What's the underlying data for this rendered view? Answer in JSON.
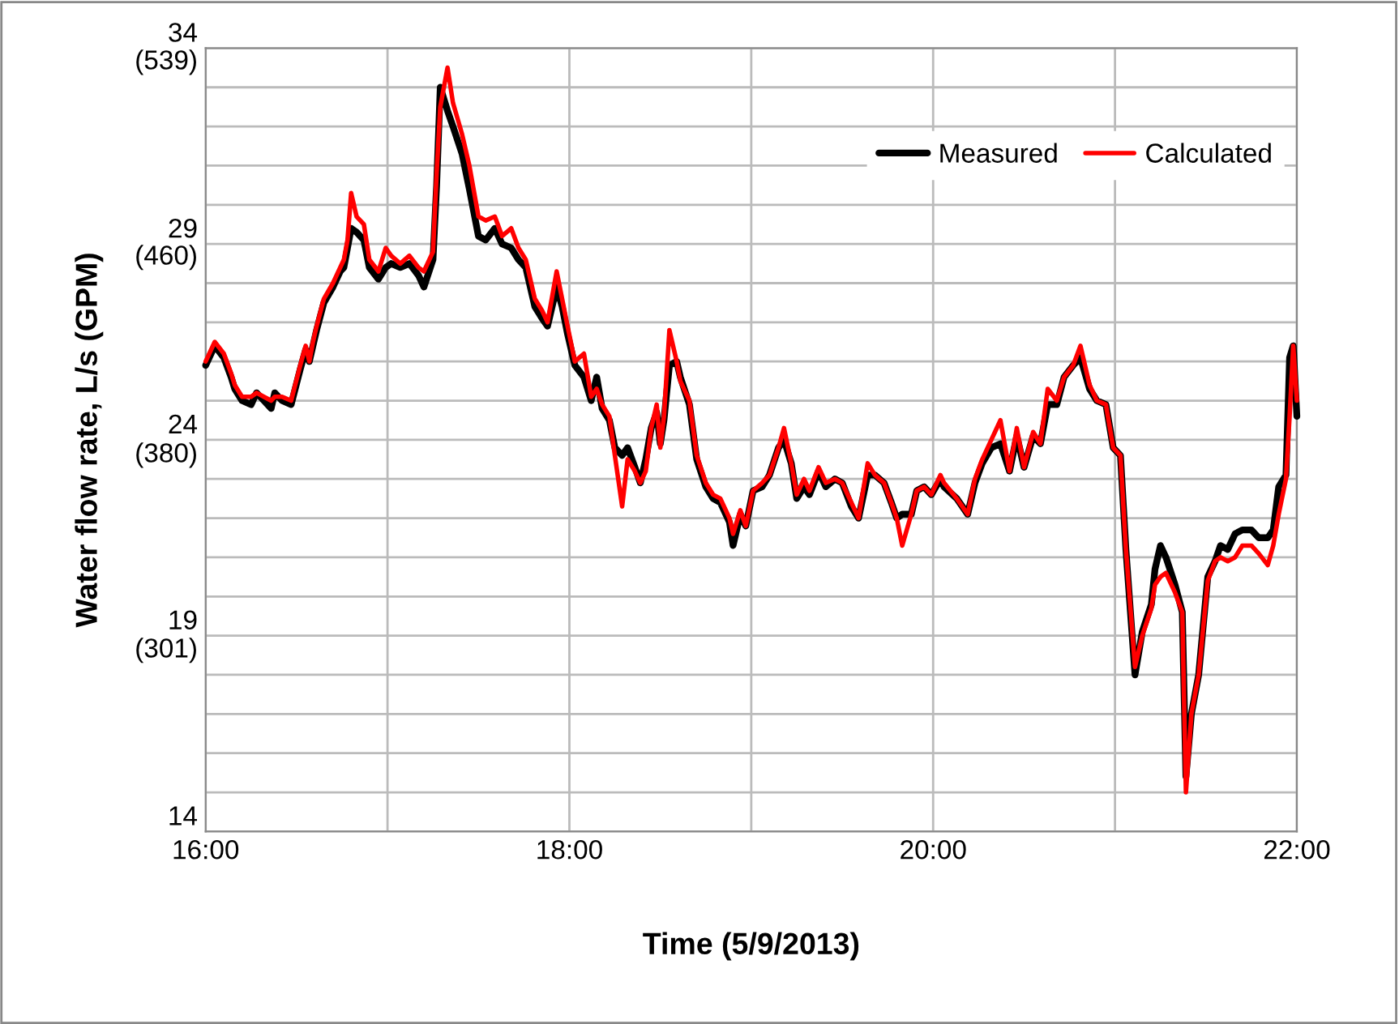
{
  "chart_data": {
    "type": "line",
    "xlabel": "Time (5/9/2013)",
    "y2label": "Water flow rate, L/s (GPM)",
    "x": [
      16.0,
      16.05,
      16.1,
      16.14,
      16.16,
      16.2,
      16.25,
      16.28,
      16.32,
      16.36,
      16.38,
      16.42,
      16.47,
      16.52,
      16.55,
      16.57,
      16.59,
      16.61,
      16.65,
      16.7,
      16.74,
      16.76,
      16.78,
      16.8,
      16.83,
      16.87,
      16.9,
      16.95,
      16.99,
      17.02,
      17.07,
      17.12,
      17.17,
      17.2,
      17.25,
      17.27,
      17.29,
      17.33,
      17.36,
      17.41,
      17.45,
      17.5,
      17.54,
      17.59,
      17.63,
      17.68,
      17.72,
      17.76,
      17.81,
      17.85,
      17.88,
      17.93,
      17.96,
      17.99,
      18.03,
      18.08,
      18.12,
      18.15,
      18.18,
      18.22,
      18.25,
      18.29,
      18.32,
      18.36,
      18.39,
      18.42,
      18.45,
      18.48,
      18.5,
      18.52,
      18.55,
      18.59,
      18.61,
      18.66,
      18.7,
      18.75,
      18.79,
      18.83,
      18.88,
      18.9,
      18.94,
      18.97,
      19.01,
      19.06,
      19.1,
      19.15,
      19.18,
      19.22,
      19.25,
      19.29,
      19.32,
      19.37,
      19.41,
      19.46,
      19.5,
      19.55,
      19.59,
      19.64,
      19.68,
      19.73,
      19.77,
      19.8,
      19.83,
      19.88,
      19.91,
      19.95,
      19.99,
      20.04,
      20.06,
      20.13,
      20.19,
      20.23,
      20.27,
      20.32,
      20.37,
      20.42,
      20.46,
      20.5,
      20.55,
      20.59,
      20.63,
      20.68,
      20.72,
      20.77,
      20.81,
      20.86,
      20.9,
      20.95,
      20.99,
      21.03,
      21.06,
      21.11,
      21.15,
      21.2,
      21.22,
      21.25,
      21.28,
      21.33,
      21.37,
      21.39,
      21.42,
      21.46,
      21.51,
      21.55,
      21.58,
      21.62,
      21.66,
      21.7,
      21.75,
      21.79,
      21.84,
      21.87,
      21.9,
      21.94,
      21.96,
      21.98,
      22.0
    ],
    "series": [
      {
        "name": "Measured",
        "color": "#000000",
        "values": [
          25.9,
          26.4,
          26.1,
          25.6,
          25.3,
          25.0,
          24.9,
          25.2,
          25.0,
          24.8,
          25.2,
          25.0,
          24.9,
          25.8,
          26.3,
          26.0,
          26.4,
          26.8,
          27.5,
          27.9,
          28.3,
          28.4,
          28.9,
          29.4,
          29.3,
          29.1,
          28.4,
          28.1,
          28.4,
          28.5,
          28.4,
          28.5,
          28.2,
          27.9,
          28.6,
          30.5,
          33.0,
          32.4,
          32.0,
          31.3,
          30.4,
          29.2,
          29.1,
          29.4,
          29.0,
          28.9,
          28.6,
          28.4,
          27.4,
          27.1,
          26.9,
          27.9,
          27.4,
          26.7,
          25.9,
          25.6,
          25.0,
          25.6,
          24.8,
          24.5,
          23.8,
          23.6,
          23.8,
          23.3,
          22.9,
          23.5,
          24.3,
          24.7,
          23.9,
          24.5,
          25.9,
          26.0,
          25.6,
          24.9,
          23.5,
          22.8,
          22.5,
          22.4,
          21.9,
          21.3,
          22.1,
          21.8,
          22.7,
          22.8,
          23.1,
          23.8,
          24.0,
          23.4,
          22.5,
          22.8,
          22.6,
          23.2,
          22.8,
          23.0,
          22.9,
          22.3,
          22.0,
          23.1,
          23.1,
          22.9,
          22.4,
          22.0,
          22.1,
          22.1,
          22.7,
          22.8,
          22.6,
          23.0,
          22.8,
          22.5,
          22.1,
          22.9,
          23.4,
          23.8,
          23.9,
          23.2,
          24.1,
          23.3,
          24.1,
          23.9,
          24.9,
          24.9,
          25.6,
          25.9,
          26.1,
          25.3,
          25.0,
          24.9,
          23.8,
          23.6,
          21.2,
          18.0,
          19.1,
          19.8,
          20.7,
          21.3,
          21.0,
          20.3,
          19.6,
          15.4,
          17.0,
          18.0,
          20.5,
          20.9,
          21.3,
          21.2,
          21.6,
          21.7,
          21.7,
          21.5,
          21.5,
          21.7,
          22.8,
          23.1,
          26.1,
          26.4,
          24.6
        ]
      },
      {
        "name": "Calculated",
        "color": "#ff0000",
        "values": [
          26.0,
          26.5,
          26.2,
          25.7,
          25.4,
          25.1,
          25.1,
          25.2,
          25.1,
          25.0,
          25.1,
          25.1,
          25.0,
          25.9,
          26.4,
          26.0,
          26.5,
          26.9,
          27.6,
          28.0,
          28.4,
          28.6,
          29.1,
          30.3,
          29.7,
          29.5,
          28.6,
          28.3,
          28.9,
          28.7,
          28.5,
          28.7,
          28.4,
          28.3,
          28.8,
          30.8,
          32.5,
          33.5,
          32.6,
          31.8,
          31.0,
          29.7,
          29.6,
          29.7,
          29.2,
          29.4,
          28.9,
          28.6,
          27.6,
          27.3,
          27.0,
          28.3,
          27.6,
          26.9,
          26.0,
          26.2,
          25.1,
          25.3,
          24.9,
          24.6,
          23.6,
          22.3,
          23.5,
          23.2,
          22.9,
          23.2,
          24.3,
          24.9,
          23.8,
          24.6,
          26.8,
          26.0,
          25.5,
          25.0,
          23.6,
          22.9,
          22.6,
          22.5,
          22.0,
          21.6,
          22.2,
          21.8,
          22.7,
          22.9,
          23.1,
          23.8,
          24.3,
          23.4,
          22.6,
          23.0,
          22.7,
          23.3,
          22.9,
          23.0,
          22.9,
          22.4,
          22.0,
          23.4,
          23.1,
          22.9,
          22.4,
          22.0,
          21.3,
          22.1,
          22.7,
          22.8,
          22.6,
          23.1,
          22.9,
          22.5,
          22.1,
          23.0,
          23.5,
          24.0,
          24.5,
          23.2,
          24.3,
          23.3,
          24.2,
          23.9,
          25.3,
          25.0,
          25.6,
          25.9,
          26.4,
          25.4,
          25.0,
          24.9,
          23.8,
          23.6,
          21.2,
          18.2,
          19.0,
          19.7,
          20.3,
          20.5,
          20.6,
          20.1,
          19.6,
          15.0,
          17.0,
          18.0,
          20.4,
          20.9,
          21.0,
          20.9,
          21.0,
          21.3,
          21.3,
          21.1,
          20.8,
          21.3,
          22.1,
          23.0,
          24.6,
          26.4,
          25.0
        ]
      }
    ],
    "xlim": [
      16,
      22
    ],
    "ylim": [
      14,
      34
    ],
    "xticks": [
      {
        "value": 16,
        "label": "16:00"
      },
      {
        "value": 17,
        "label": null
      },
      {
        "value": 18,
        "label": "18:00"
      },
      {
        "value": 19,
        "label": null
      },
      {
        "value": 20,
        "label": "20:00"
      },
      {
        "value": 21,
        "label": null
      },
      {
        "value": 22,
        "label": "22:00"
      }
    ],
    "yticks": [
      14,
      {
        "value": 15,
        "label": null
      },
      {
        "value": 16,
        "label": null
      },
      {
        "value": 17,
        "label": null
      },
      {
        "value": 18,
        "label": null
      },
      19,
      {
        "value": 20,
        "label": null
      },
      {
        "value": 21,
        "label": null
      },
      {
        "value": 22,
        "label": null
      },
      {
        "value": 23,
        "label": null
      },
      24,
      {
        "value": 25,
        "label": null
      },
      {
        "value": 26,
        "label": null
      },
      {
        "value": 27,
        "label": null
      },
      {
        "value": 28,
        "label": null
      },
      29,
      {
        "value": 30,
        "label": null
      },
      {
        "value": 31,
        "label": null
      },
      {
        "value": 32,
        "label": null
      },
      {
        "value": 33,
        "label": null
      },
      34
    ],
    "y2lim": [
      222,
      539
    ],
    "y2ticks": [
      {
        "value": 301,
        "label": "(301)"
      },
      {
        "value": 380,
        "label": "(380)"
      },
      {
        "value": 460,
        "label": "(460)"
      },
      {
        "value": 539,
        "label": "(539)"
      }
    ],
    "grid": true,
    "legend": "top right",
    "marker": "none",
    "line_style": "solid"
  }
}
